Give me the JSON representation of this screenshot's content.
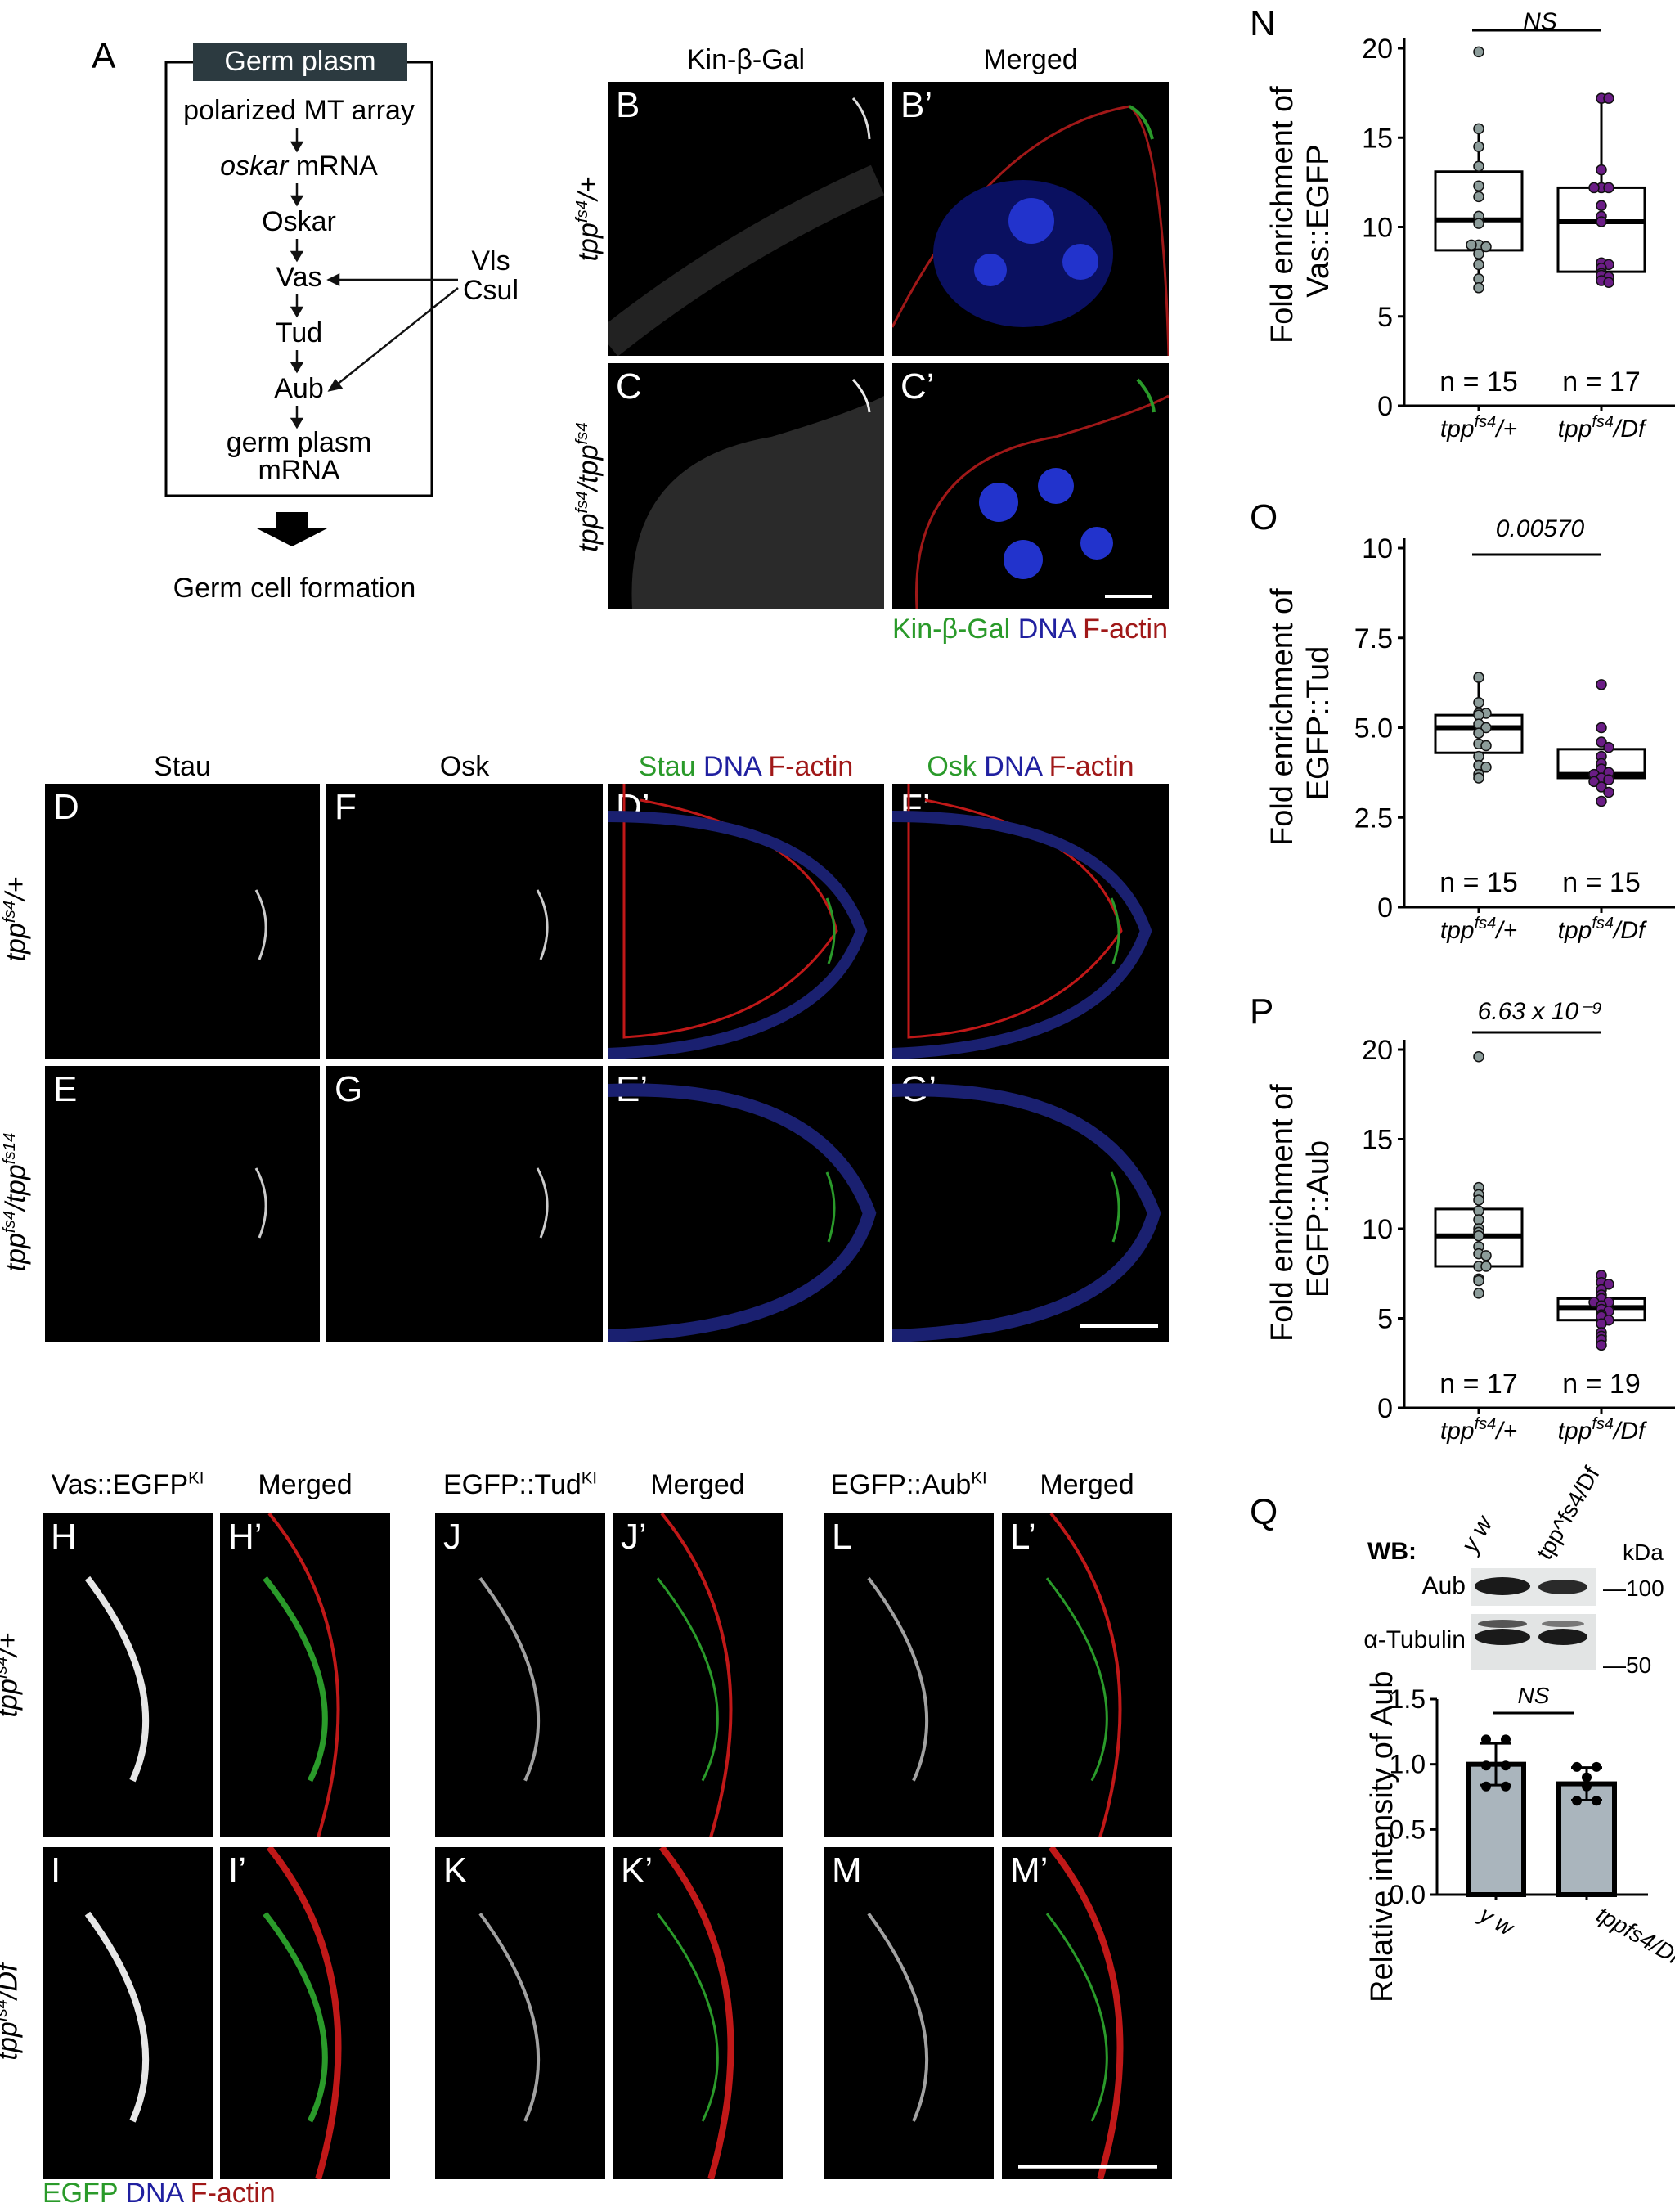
{
  "panel_A": {
    "letter": "A",
    "header": "Germ plasm",
    "steps": [
      "polarized MT array",
      "oskar",
      "mRNA",
      "Oskar",
      "Vas",
      "Tud",
      "Aub",
      "germ plasm",
      "mRNA"
    ],
    "regulators": [
      "Vls",
      "Csul"
    ],
    "outcome": "Germ cell formation"
  },
  "panel_BC": {
    "headers": [
      "Kin-β-Gal",
      "Merged"
    ],
    "letters": [
      "B",
      "B’",
      "C",
      "C’"
    ],
    "rows": [
      {
        "base": "tpp",
        "sup": "fs4",
        "rest": "/+"
      },
      {
        "base": "tpp",
        "sup": "fs4",
        "rest": "/tpp",
        "sup2": "fs4"
      }
    ],
    "legend": [
      "Kin-β-Gal",
      "DNA",
      "F-actin"
    ]
  },
  "panel_DG": {
    "headers": [
      "Stau",
      "Osk"
    ],
    "merged_headers": [
      [
        "Stau",
        "DNA",
        "F-actin"
      ],
      [
        "Osk",
        "DNA",
        "F-actin"
      ]
    ],
    "letters": [
      "D",
      "F",
      "D’",
      "F’",
      "E",
      "G",
      "E’",
      "G’"
    ],
    "rows": [
      {
        "base": "tpp",
        "sup": "fs4",
        "rest": "/+"
      },
      {
        "base": "tpp",
        "sup": "fs4",
        "rest": "/tpp",
        "sup2": "fs14"
      }
    ]
  },
  "panel_HM": {
    "headers": [
      {
        "base": "Vas::EGFP",
        "sup": "KI"
      },
      {
        "base": "Merged"
      },
      {
        "base": "EGFP::Tud",
        "sup": "KI"
      },
      {
        "base": "Merged"
      },
      {
        "base": "EGFP::Aub",
        "sup": "KI"
      },
      {
        "base": "Merged"
      }
    ],
    "letters": [
      "H",
      "H’",
      "J",
      "J’",
      "L",
      "L’",
      "I",
      "I’",
      "K",
      "K’",
      "M",
      "M’"
    ],
    "rows": [
      {
        "base": "tpp",
        "sup": "fs4",
        "rest": "/+"
      },
      {
        "base": "tpp",
        "sup": "fs4",
        "rest": "/Df"
      }
    ],
    "legend": [
      "EGFP",
      "DNA",
      "F-actin"
    ]
  },
  "panel_Q_blot": {
    "letter": "Q",
    "wb_label": "WB:",
    "lanes": [
      "y w",
      "tpp^fs4/Df"
    ],
    "kda_label": "kDa",
    "bands": [
      "Aub",
      "α-Tubulin"
    ],
    "markers": [
      "100",
      "50"
    ]
  },
  "colors": {
    "grey_points": "#8c9c9a",
    "purple_points": "#6b1d86",
    "bar_fill": "#aab5bd",
    "green": "#2a9a2a",
    "blue": "#2020a0",
    "red": "#a01818"
  },
  "chart_data": [
    {
      "letter": "N",
      "type": "box+scatter",
      "ylabel": [
        "Fold enrichment of",
        "Vas::EGFP"
      ],
      "ylim": [
        0,
        20
      ],
      "yticks": [
        "0",
        "5",
        "10",
        "15",
        "20"
      ],
      "categories": [
        "tpp^fs4/+",
        "tpp^fs4/Df"
      ],
      "significance": "NS",
      "n_labels": [
        "n = 15",
        "n = 17"
      ],
      "series": [
        {
          "box": {
            "q1": 8.7,
            "median": 10.4,
            "q3": 13.1,
            "whisker_low": 6.6,
            "whisker_high": 15.5
          },
          "points": [
            19.8,
            15.5,
            14.5,
            13.4,
            12.3,
            11.7,
            10.6,
            10.2,
            9.0,
            8.9,
            8.5,
            7.9,
            7.1,
            6.6,
            9.0
          ]
        },
        {
          "box": {
            "q1": 7.5,
            "median": 10.3,
            "q3": 12.2,
            "whisker_low": 6.9,
            "whisker_high": 17.2
          },
          "points": [
            17.2,
            17.2,
            13.2,
            12.2,
            12.2,
            12.2,
            11.2,
            10.6,
            10.3,
            8.0,
            7.9,
            7.7,
            7.4,
            7.3,
            7.2,
            7.0,
            6.9
          ]
        }
      ]
    },
    {
      "letter": "O",
      "type": "box+scatter",
      "ylabel": [
        "Fold enrichment of",
        "EGFP::Tud"
      ],
      "ylim": [
        0,
        10
      ],
      "yticks": [
        "0",
        "2.5",
        "5.0",
        "7.5",
        "10"
      ],
      "categories": [
        "tpp^fs4/+",
        "tpp^fs4/Df"
      ],
      "significance": "0.00570",
      "n_labels": [
        "n = 15",
        "n = 15"
      ],
      "series": [
        {
          "box": {
            "q1": 4.3,
            "median": 5.0,
            "q3": 5.35,
            "whisker_low": 3.6,
            "whisker_high": 6.4
          },
          "points": [
            6.4,
            5.7,
            5.4,
            5.4,
            5.35,
            5.1,
            5.0,
            4.85,
            4.55,
            4.5,
            4.2,
            3.95,
            3.9,
            3.7,
            3.6
          ]
        },
        {
          "box": {
            "q1": 3.6,
            "median": 3.7,
            "q3": 4.4,
            "whisker_low": 3.6,
            "whisker_high": 4.4
          },
          "points": [
            6.2,
            5.0,
            4.6,
            4.45,
            4.2,
            4.0,
            3.85,
            3.75,
            3.7,
            3.6,
            3.55,
            3.5,
            3.35,
            3.2,
            2.95
          ]
        }
      ]
    },
    {
      "letter": "P",
      "type": "box+scatter",
      "ylabel": [
        "Fold enrichment of",
        "EGFP::Aub"
      ],
      "ylim": [
        0,
        20
      ],
      "yticks": [
        "0",
        "5",
        "10",
        "15",
        "20"
      ],
      "categories": [
        "tpp^fs4/+",
        "tpp^fs4/Df"
      ],
      "significance": "6.63 x 10⁻⁹",
      "n_labels": [
        "n = 17",
        "n = 19"
      ],
      "series": [
        {
          "box": {
            "q1": 7.9,
            "median": 9.6,
            "q3": 11.1,
            "whisker_low": 7.9,
            "whisker_high": 11.1
          },
          "points": [
            19.6,
            12.3,
            11.9,
            11.6,
            11.0,
            10.5,
            10.0,
            9.8,
            9.6,
            9.0,
            8.6,
            8.5,
            7.9,
            7.9,
            7.2,
            7.1,
            6.4
          ]
        },
        {
          "box": {
            "q1": 4.9,
            "median": 5.6,
            "q3": 6.1,
            "whisker_low": 4.9,
            "whisker_high": 6.1
          },
          "points": [
            7.4,
            7.0,
            6.9,
            6.6,
            6.3,
            6.1,
            5.9,
            5.9,
            5.7,
            5.5,
            5.4,
            5.2,
            5.1,
            4.9,
            4.7,
            4.2,
            4.0,
            3.8,
            3.5
          ]
        }
      ]
    },
    {
      "letter": "Q",
      "type": "bar",
      "ylabel": [
        "Relative intensity of Aub"
      ],
      "ylim": [
        0,
        1.5
      ],
      "yticks": [
        "0.0",
        "0.5",
        "1.0",
        "1.5"
      ],
      "categories": [
        "y w",
        "tpp^fs4/Df"
      ],
      "significance": "NS",
      "series": [
        {
          "value": 1.0,
          "error": 0.16,
          "points": [
            1.19,
            1.19,
            0.99,
            0.99,
            0.83,
            0.83
          ]
        },
        {
          "value": 0.85,
          "error": 0.125,
          "points": [
            0.98,
            0.98,
            0.9,
            0.83,
            0.72,
            0.72
          ]
        }
      ]
    }
  ]
}
